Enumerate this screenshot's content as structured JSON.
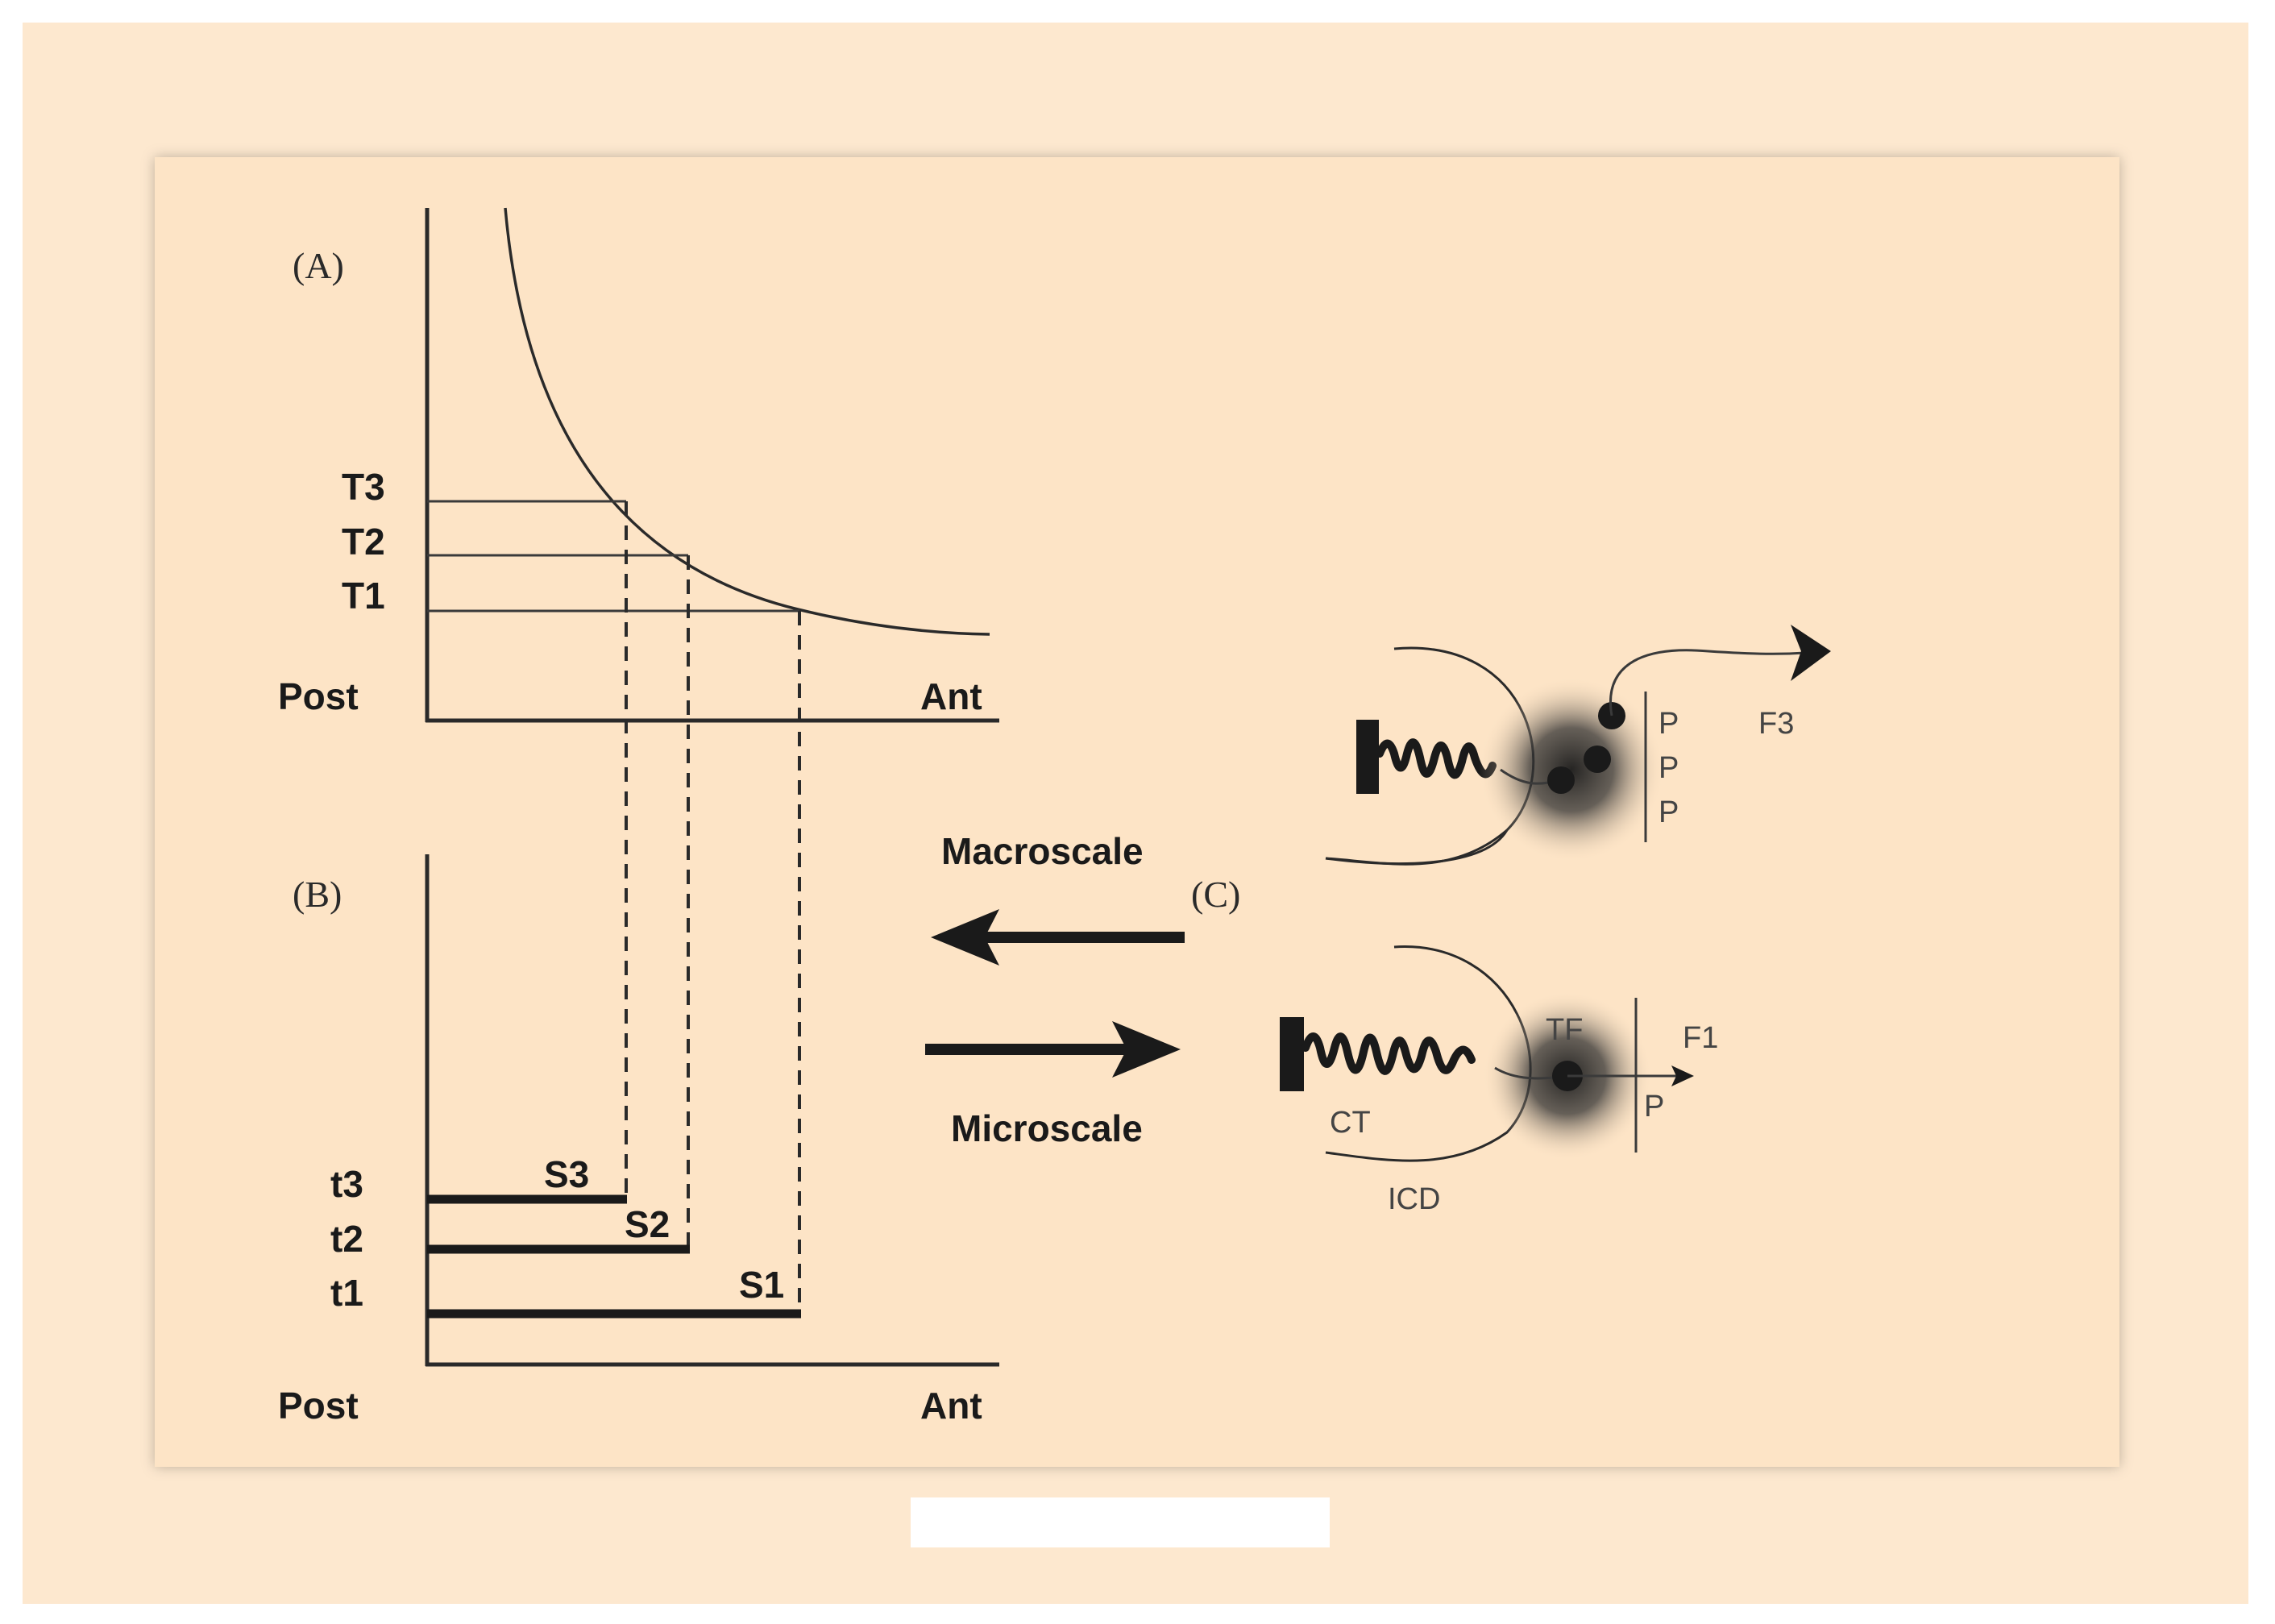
{
  "panel_a": {
    "label": "(A)",
    "y_ticks": [
      "T3",
      "T2",
      "T1"
    ],
    "x_left": "Post",
    "x_right": "Ant"
  },
  "panel_b": {
    "label": "(B)",
    "y_ticks": [
      "t3",
      "t2",
      "t1"
    ],
    "segments": [
      "S3",
      "S2",
      "S1"
    ],
    "x_left": "Post",
    "x_right": "Ant"
  },
  "arrows": {
    "macro": "Macroscale",
    "micro": "Microscale"
  },
  "panel_c": {
    "label": "(C)",
    "top": {
      "p_labels": [
        "P",
        "P",
        "P"
      ],
      "output": "F3"
    },
    "bottom": {
      "tf": "TF",
      "output": "F1",
      "p_label": "P",
      "ct": "CT",
      "icd": "ICD"
    }
  },
  "colors": {
    "outer_bg": "#fde8cf",
    "panel_bg": "#fde4c6"
  }
}
